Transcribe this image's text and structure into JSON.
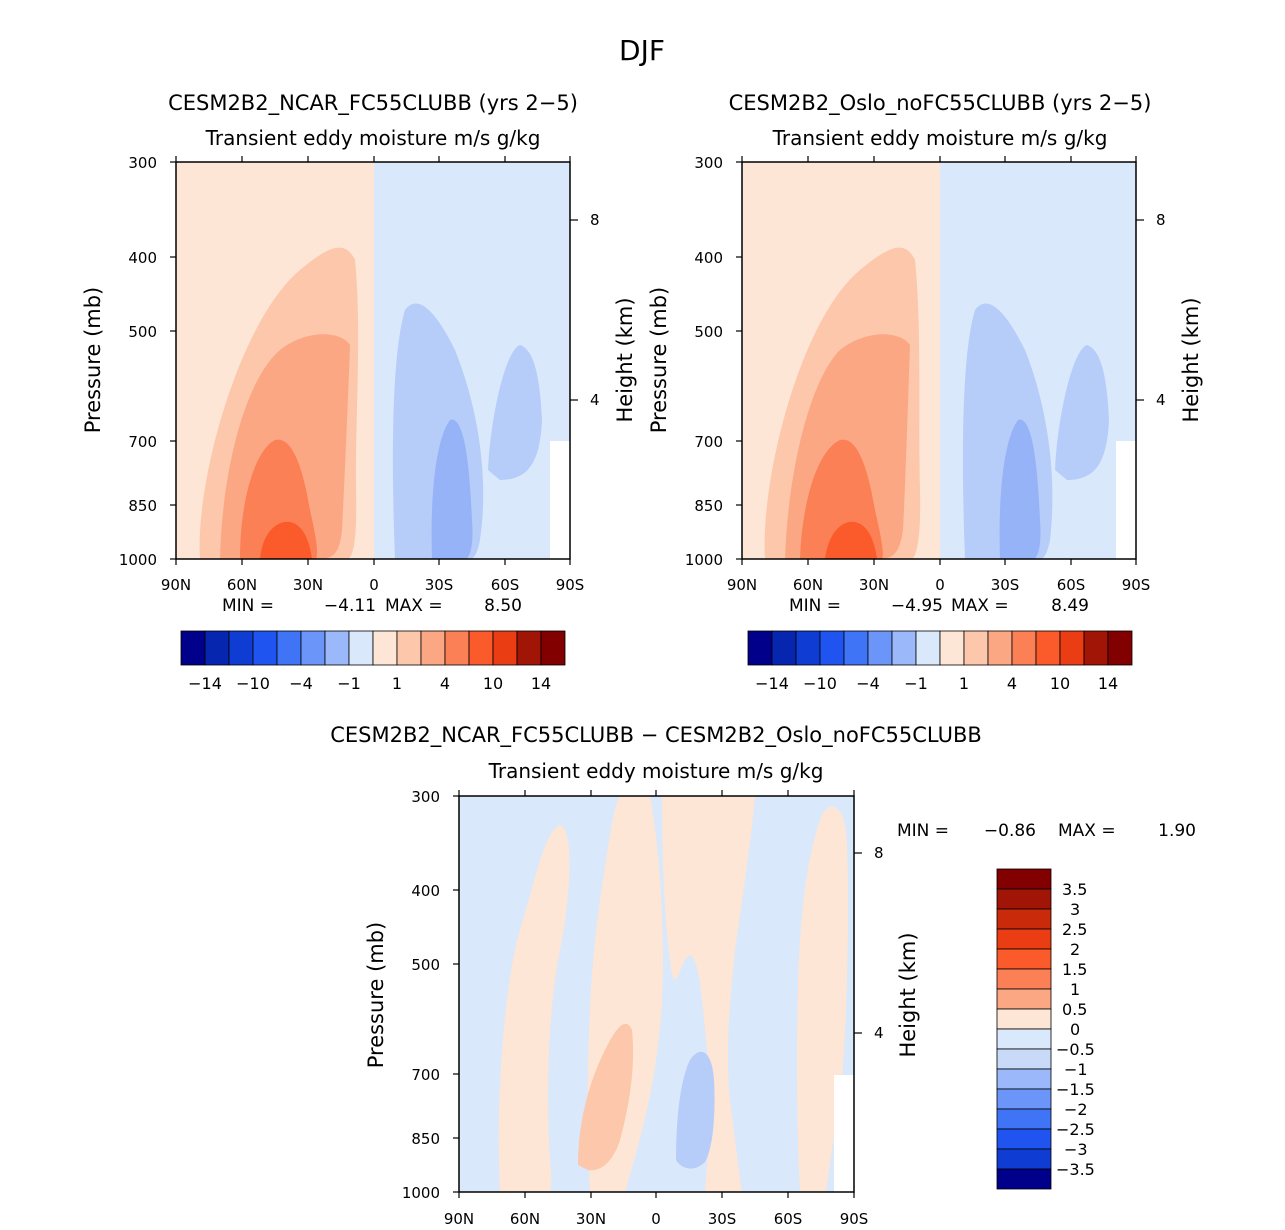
{
  "title": "DJF",
  "colors": {
    "neg": [
      "#00008b",
      "#0726b0",
      "#0f3dd3",
      "#1f54f0",
      "#3f74f7",
      "#6b95f8",
      "#9bb8fa",
      "#c8daf8",
      "#d9e8fb"
    ],
    "pos": [
      "#fde6d5",
      "#fcc7ab",
      "#fca784",
      "#fc8055",
      "#fb5a2a",
      "#ea3d14",
      "#c92a0a",
      "#a01505",
      "#820000"
    ],
    "fill_pos1": "#fde6d5",
    "fill_pos2": "#fcc7ab",
    "fill_pos3": "#fca784",
    "fill_pos4": "#fc8055",
    "fill_pos5": "#fb5a2a",
    "fill_neg1": "#d9e8fb",
    "fill_neg2": "#b6cdf9",
    "fill_neg3": "#97b3f8"
  },
  "chart_data": [
    {
      "type": "contour",
      "title": "CESM2B2_NCAR_FC55CLUBB (yrs 2-5)",
      "variable": "Transient eddy moisture m/s  g/kg",
      "xlabel": "",
      "ylabel": "Pressure (mb)",
      "y2label": "Height (km)",
      "x_ticks": [
        "90N",
        "60N",
        "30N",
        "0",
        "30S",
        "60S",
        "90S"
      ],
      "y_ticks": [
        "300",
        "400",
        "500",
        "700",
        "850",
        "1000"
      ],
      "y_ticks_values": [
        300,
        400,
        500,
        700,
        850,
        1000
      ],
      "y2_ticks": [
        "8",
        "4"
      ],
      "stats": {
        "min_label": "MIN =",
        "min": "-4.11",
        "max_label": "MAX =",
        "max": "8.50"
      },
      "colorbar_labels": [
        "-14",
        "-10",
        "-4",
        "-1",
        "1",
        "4",
        "10",
        "14"
      ]
    },
    {
      "type": "contour",
      "title": "CESM2B2_Oslo_noFC55CLUBB (yrs 2-5)",
      "variable": "Transient eddy moisture m/s  g/kg",
      "xlabel": "",
      "ylabel": "Pressure (mb)",
      "y2label": "Height (km)",
      "x_ticks": [
        "90N",
        "60N",
        "30N",
        "0",
        "30S",
        "60S",
        "90S"
      ],
      "y_ticks": [
        "300",
        "400",
        "500",
        "700",
        "850",
        "1000"
      ],
      "y_ticks_values": [
        300,
        400,
        500,
        700,
        850,
        1000
      ],
      "y2_ticks": [
        "8",
        "4"
      ],
      "stats": {
        "min_label": "MIN =",
        "min": "-4.95",
        "max_label": "MAX =",
        "max": "8.49"
      },
      "colorbar_labels": [
        "-14",
        "-10",
        "-4",
        "-1",
        "1",
        "4",
        "10",
        "14"
      ]
    },
    {
      "type": "contour",
      "title": "CESM2B2_NCAR_FC55CLUBB - CESM2B2_Oslo_noFC55CLUBB",
      "variable": "Transient eddy moisture m/s  g/kg",
      "xlabel": "",
      "ylabel": "Pressure (mb)",
      "y2label": "Height (km)",
      "x_ticks": [
        "90N",
        "60N",
        "30N",
        "0",
        "30S",
        "60S",
        "90S"
      ],
      "y_ticks": [
        "300",
        "400",
        "500",
        "700",
        "850",
        "1000"
      ],
      "y_ticks_values": [
        300,
        400,
        500,
        700,
        850,
        1000
      ],
      "y2_ticks": [
        "8",
        "4"
      ],
      "stats": {
        "min_label": "MIN =",
        "min": "-0.86",
        "max_label": "MAX =",
        "max": "1.90"
      },
      "colorbar_labels": [
        "3.5",
        "3",
        "2.5",
        "2",
        "1.5",
        "1",
        "0.5",
        "0",
        "-0.5",
        "-1",
        "-1.5",
        "-2",
        "-2.5",
        "-3",
        "-3.5"
      ]
    }
  ]
}
